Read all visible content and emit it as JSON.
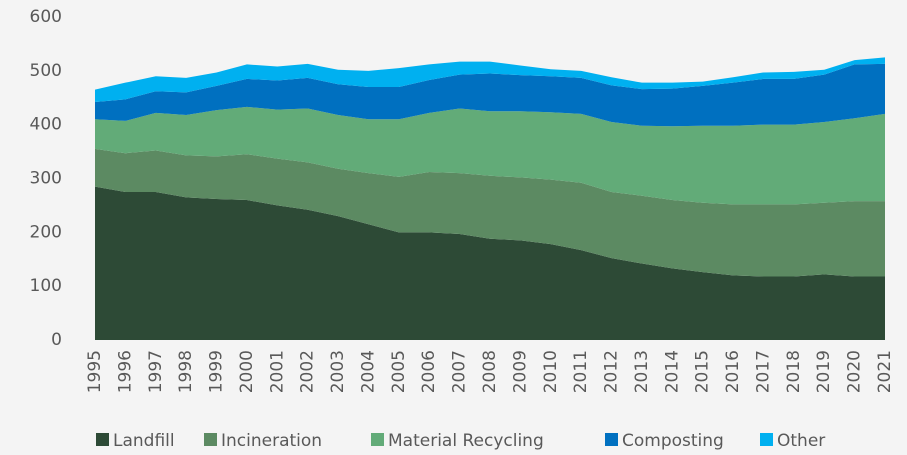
{
  "chart_data": {
    "type": "stacked_area",
    "x": [
      1995,
      1996,
      1997,
      1998,
      1999,
      2000,
      2001,
      2002,
      2003,
      2004,
      2005,
      2006,
      2007,
      2008,
      2009,
      2010,
      2011,
      2012,
      2013,
      2014,
      2015,
      2016,
      2017,
      2018,
      2019,
      2020,
      2021
    ],
    "series": [
      {
        "name": "Landfill",
        "color": "#2d4a36",
        "values": [
          285,
          275,
          275,
          265,
          262,
          260,
          250,
          242,
          230,
          215,
          200,
          200,
          197,
          188,
          185,
          178,
          167,
          152,
          142,
          133,
          126,
          120,
          118,
          118,
          122,
          118,
          118
        ]
      },
      {
        "name": "Incineration",
        "color": "#5c8a62",
        "values": [
          70,
          72,
          77,
          78,
          79,
          85,
          87,
          88,
          88,
          95,
          103,
          112,
          113,
          117,
          117,
          120,
          125,
          123,
          126,
          127,
          129,
          132,
          134,
          134,
          133,
          140,
          140
        ]
      },
      {
        "name": "Material Recycling",
        "color": "#62ab78",
        "values": [
          55,
          60,
          70,
          75,
          86,
          88,
          91,
          100,
          100,
          100,
          107,
          110,
          120,
          120,
          123,
          125,
          128,
          130,
          130,
          137,
          143,
          146,
          148,
          148,
          150,
          154,
          162
        ]
      },
      {
        "name": "Composting",
        "color": "#0070c0",
        "values": [
          32,
          40,
          40,
          42,
          45,
          52,
          54,
          57,
          57,
          60,
          60,
          61,
          63,
          70,
          67,
          67,
          67,
          68,
          68,
          70,
          74,
          80,
          85,
          85,
          88,
          100,
          93
        ]
      },
      {
        "name": "Other",
        "color": "#00b0f0",
        "values": [
          23,
          31,
          28,
          27,
          25,
          27,
          26,
          26,
          27,
          30,
          35,
          29,
          24,
          22,
          18,
          13,
          13,
          15,
          12,
          11,
          8,
          10,
          12,
          13,
          9,
          8,
          12
        ]
      }
    ],
    "ylim": [
      0,
      600
    ],
    "yticks": [
      0,
      100,
      200,
      300,
      400,
      500,
      600
    ],
    "xlim": [
      1995,
      2021
    ]
  }
}
